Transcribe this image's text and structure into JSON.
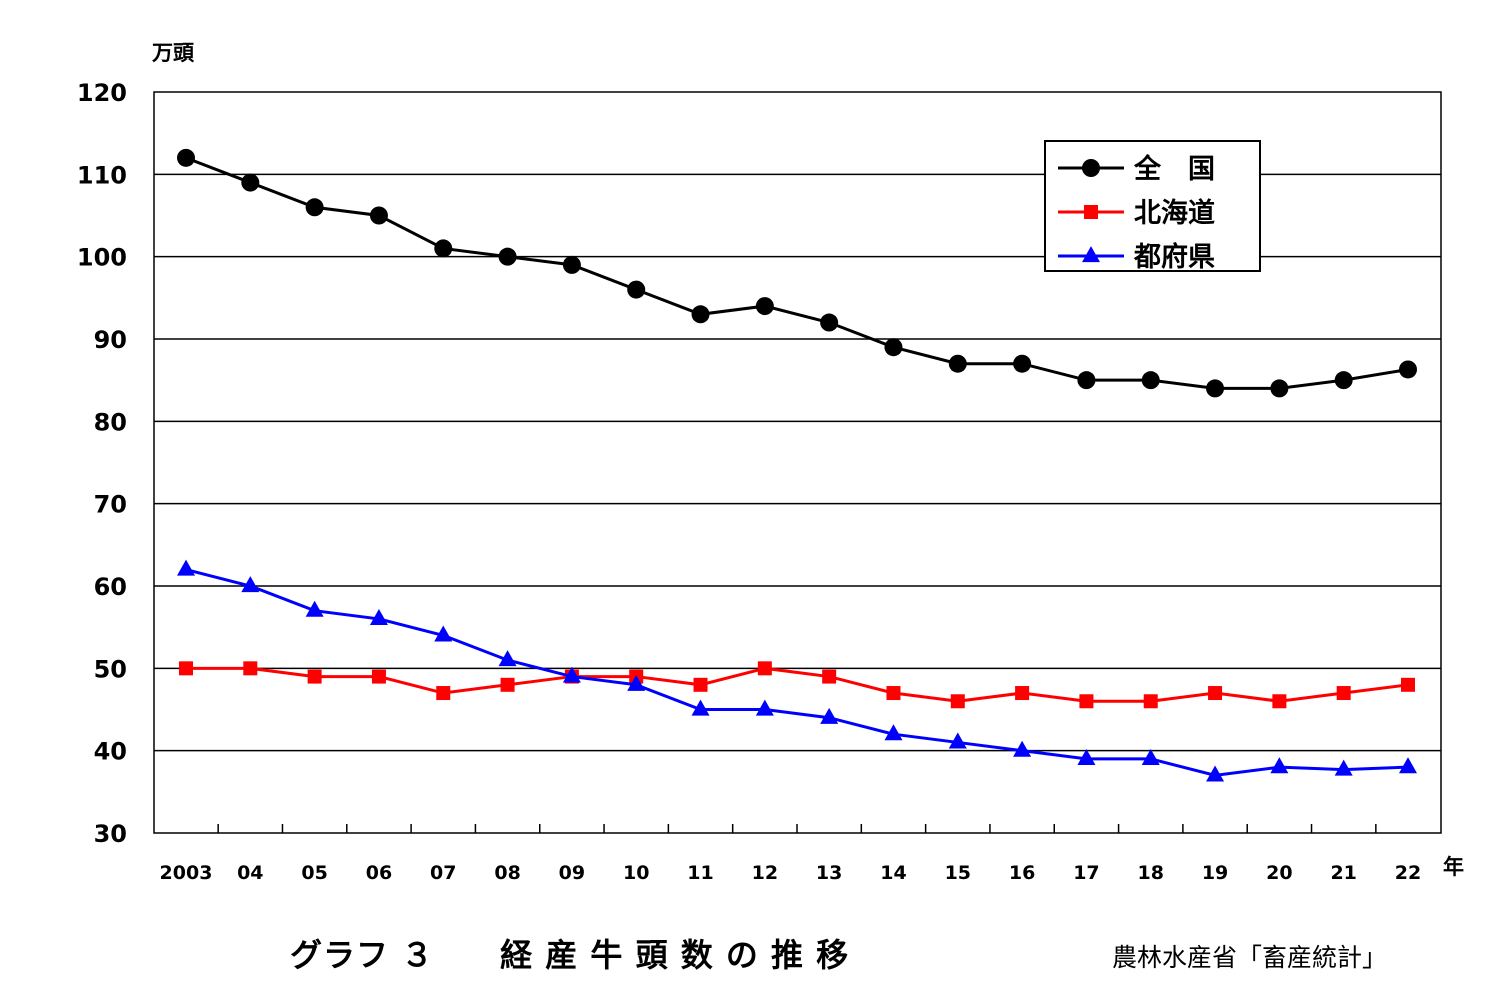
{
  "chart_data": {
    "type": "line",
    "title": "グラフ ３　　経 産 牛 頭 数 の 推 移",
    "source": "農林水産省「畜産統計」",
    "ylabel": "万頭",
    "xlabel": "年",
    "ylim": [
      30,
      120
    ],
    "yticks": [
      "30",
      "40",
      "50",
      "60",
      "70",
      "80",
      "90",
      "100",
      "110",
      "120"
    ],
    "categories": [
      "2003",
      "04",
      "05",
      "06",
      "07",
      "08",
      "09",
      "10",
      "11",
      "12",
      "13",
      "14",
      "15",
      "16",
      "17",
      "18",
      "19",
      "20",
      "21",
      "22"
    ],
    "grid": true,
    "legend_position": "top-right",
    "series": [
      {
        "name": "全　国",
        "color": "#000000",
        "marker": "circle",
        "values": [
          112,
          109,
          106,
          105,
          101,
          100,
          99,
          96,
          93,
          94,
          92,
          89,
          87,
          87,
          85,
          85,
          84,
          84,
          85,
          86.3
        ]
      },
      {
        "name": "北海道",
        "color": "#ff0000",
        "marker": "square",
        "values": [
          50,
          50,
          49,
          49,
          47,
          48,
          49,
          49,
          48,
          50,
          49,
          47,
          46,
          47,
          46,
          46,
          47,
          46,
          47,
          48
        ]
      },
      {
        "name": "都府県",
        "color": "#0000ff",
        "marker": "triangle",
        "values": [
          62,
          60,
          57,
          56,
          54,
          51,
          49,
          48,
          45,
          45,
          44,
          42,
          41,
          40,
          39,
          39,
          37,
          38,
          37.7,
          38
        ]
      }
    ]
  }
}
